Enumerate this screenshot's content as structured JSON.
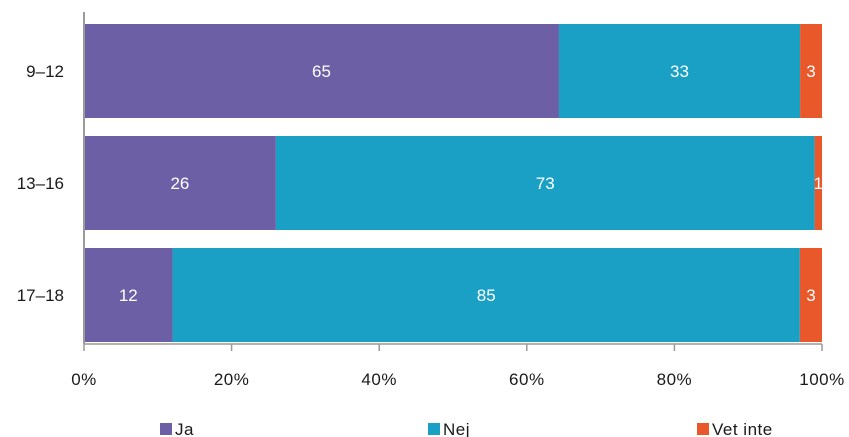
{
  "chart_data": {
    "type": "bar",
    "orientation": "horizontal",
    "stacked": true,
    "categories": [
      "9–12",
      "13–16",
      "17–18"
    ],
    "series": [
      {
        "name": "Ja",
        "color": "#6c5fa6",
        "values": [
          65,
          26,
          12
        ]
      },
      {
        "name": "Nej",
        "color": "#1aa0c4",
        "values": [
          33,
          73,
          85
        ]
      },
      {
        "name": "Vet inte",
        "color": "#e8582a",
        "values": [
          3,
          1,
          3
        ]
      }
    ],
    "value_labels": [
      [
        "65",
        "26",
        "12"
      ],
      [
        "33",
        "73",
        "85"
      ],
      [
        "3",
        "1",
        "3"
      ]
    ],
    "xlim": [
      0,
      100
    ],
    "xticks": [
      "0%",
      "20%",
      "40%",
      "60%",
      "80%",
      "100%"
    ],
    "grid": false,
    "legend_position": "bottom"
  }
}
